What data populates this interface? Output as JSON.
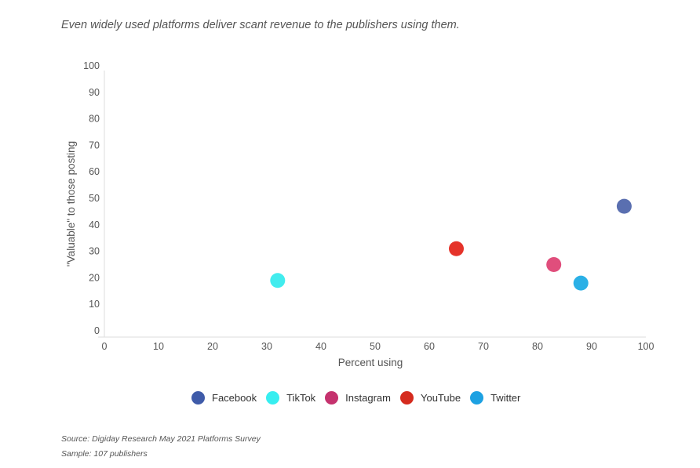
{
  "subtitle": "Even widely used platforms deliver scant revenue to the publishers using them.",
  "chart_data": {
    "type": "scatter",
    "xlabel": "Percent using",
    "ylabel": "\"Valuable\" to those posting",
    "xlim": [
      0,
      100
    ],
    "ylim": [
      0,
      100
    ],
    "xticks": [
      "0",
      "10",
      "20",
      "30",
      "40",
      "50",
      "60",
      "70",
      "80",
      "90",
      "100"
    ],
    "yticks": [
      "0",
      "10",
      "20",
      "30",
      "40",
      "50",
      "60",
      "70",
      "80",
      "90",
      "100"
    ],
    "grid": false,
    "legend_position": "bottom",
    "series": [
      {
        "name": "Facebook",
        "color": "#5a6fb0",
        "points": [
          {
            "x": 96,
            "y": 47
          }
        ]
      },
      {
        "name": "TikTok",
        "color": "#42ecee",
        "points": [
          {
            "x": 32,
            "y": 19
          }
        ]
      },
      {
        "name": "Instagram",
        "color": "#e04e7c",
        "points": [
          {
            "x": 83,
            "y": 25
          }
        ]
      },
      {
        "name": "YouTube",
        "color": "#e5332a",
        "points": [
          {
            "x": 65,
            "y": 31
          }
        ]
      },
      {
        "name": "Twitter",
        "color": "#2bb0e6",
        "points": [
          {
            "x": 88,
            "y": 18
          }
        ]
      }
    ]
  },
  "legend": {
    "items": [
      {
        "label": "Facebook",
        "color": "#3f5ba9"
      },
      {
        "label": "TikTok",
        "color": "#37eef0"
      },
      {
        "label": "Instagram",
        "color": "#c5326e"
      },
      {
        "label": "YouTube",
        "color": "#d52b1e"
      },
      {
        "label": "Twitter",
        "color": "#1da1e2"
      }
    ]
  },
  "footer": {
    "source": "Source: Digiday Research May 2021 Platforms Survey",
    "sample": "Sample: 107 publishers"
  }
}
